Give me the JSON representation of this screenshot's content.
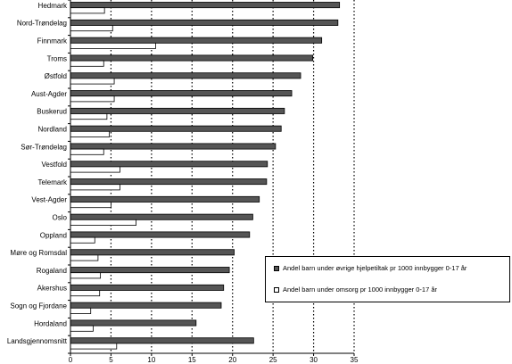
{
  "chart_data": {
    "type": "bar",
    "orientation": "horizontal",
    "title": "",
    "xlabel": "",
    "ylabel": "",
    "xlim": [
      0,
      35
    ],
    "xticks": [
      0,
      5,
      10,
      15,
      20,
      25,
      30,
      35
    ],
    "grid": "vertical-dotted",
    "legend_position": "bottom-right",
    "categories": [
      "Hedmark",
      "Nord-Trøndelag",
      "Finnmark",
      "Troms",
      "Østfold",
      "Aust-Agder",
      "Buskerud",
      "Nordland",
      "Sør-Trøndelag",
      "Vestfold",
      "Telemark",
      "Vest-Agder",
      "Oslo",
      "Oppland",
      "Møre og Romsdal",
      "Rogaland",
      "Akershus",
      "Sogn og Fjordane",
      "Hordaland",
      "Landsgjennomsnitt"
    ],
    "series": [
      {
        "name": "Andel barn under øvrige hjelpetiltak pr 1000 innbygger 0-17 år",
        "color": "#555555",
        "values": [
          33.2,
          33.0,
          31.0,
          29.9,
          28.4,
          27.3,
          26.4,
          26.0,
          25.3,
          24.3,
          24.2,
          23.3,
          22.5,
          22.1,
          20.2,
          19.6,
          18.9,
          18.6,
          15.5,
          22.6
        ]
      },
      {
        "name": "Andel barn under omsorg pr 1000 innbygger 0-17 år",
        "color": "#ffffff",
        "values": [
          4.2,
          5.2,
          10.5,
          4.1,
          5.4,
          5.4,
          4.5,
          4.8,
          4.1,
          6.1,
          6.1,
          5.0,
          8.1,
          3.0,
          3.4,
          3.7,
          3.6,
          2.5,
          2.8,
          5.7
        ]
      }
    ]
  }
}
